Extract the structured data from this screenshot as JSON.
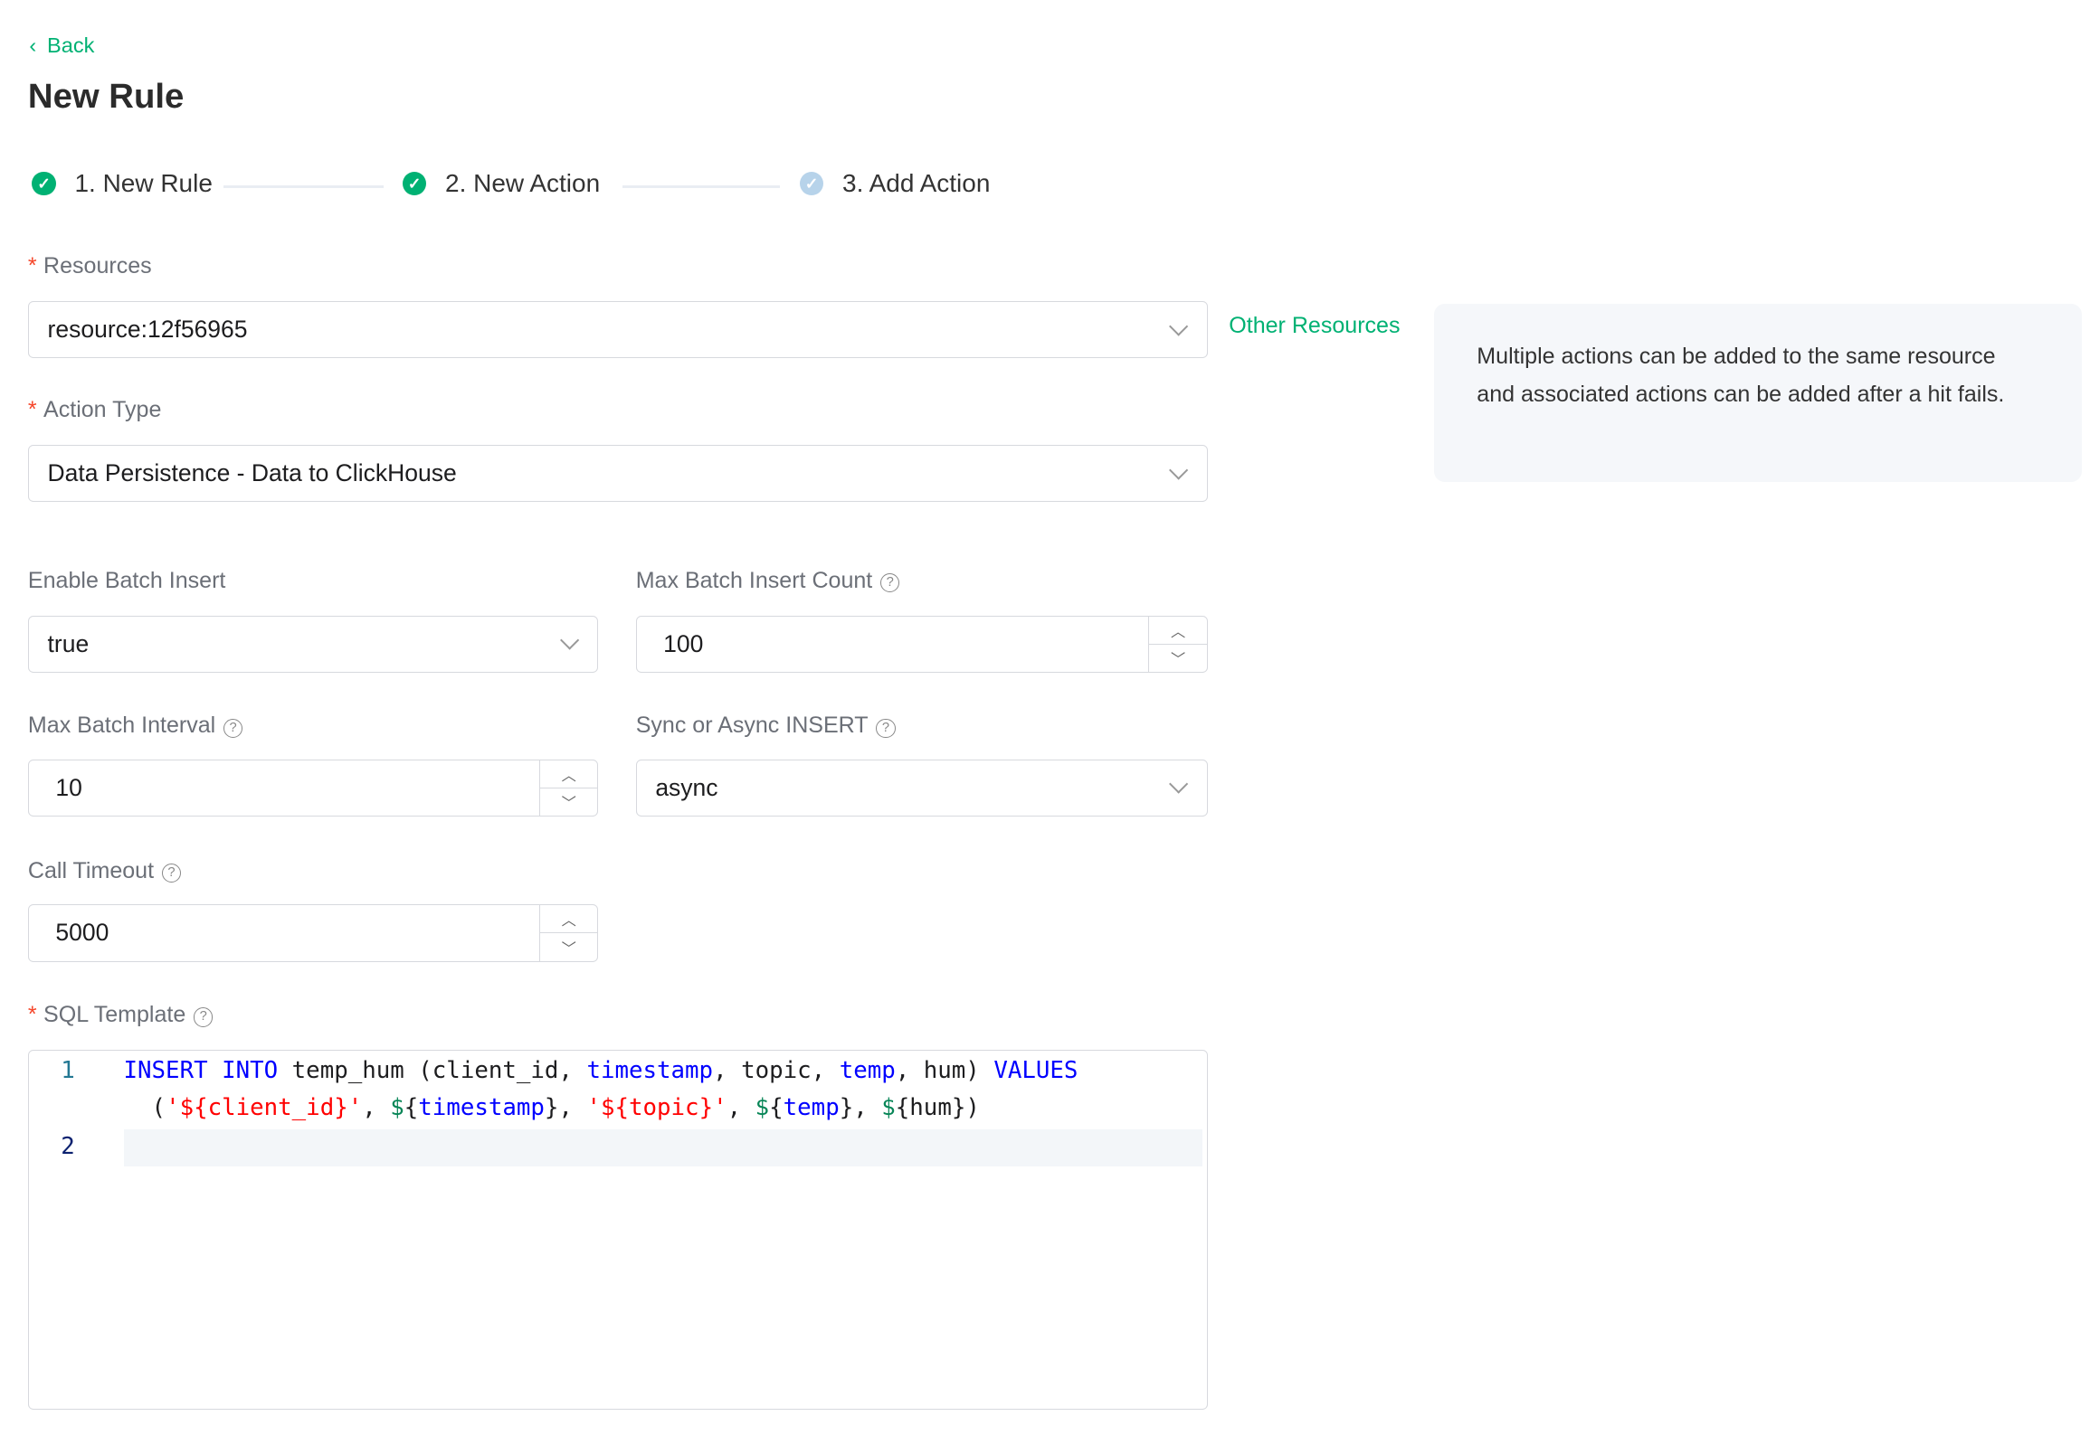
{
  "back": "Back",
  "title": "New Rule",
  "steps": [
    {
      "label": "1. New Rule",
      "status": "done"
    },
    {
      "label": "2. New Action",
      "status": "done"
    },
    {
      "label": "3. Add Action",
      "status": "current"
    }
  ],
  "colors": {
    "accent": "#00b173",
    "step_pending": "#b7d3ea",
    "required": "#f5462a"
  },
  "form": {
    "resources": {
      "label": "Resources",
      "value": "resource:12f56965",
      "link": "Other Resources"
    },
    "action_type": {
      "label": "Action Type",
      "value": "Data Persistence - Data to ClickHouse"
    },
    "enable_batch": {
      "label": "Enable Batch Insert",
      "value": "true"
    },
    "max_batch_count": {
      "label": "Max Batch Insert Count",
      "value": "100"
    },
    "max_batch_interval": {
      "label": "Max Batch Interval",
      "value": "10"
    },
    "sync_async": {
      "label": "Sync or Async INSERT",
      "value": "async"
    },
    "call_timeout": {
      "label": "Call Timeout",
      "value": "5000"
    },
    "sql_template": {
      "label": "SQL Template",
      "line_numbers": [
        "1",
        "2"
      ],
      "tokens1": [
        "INSERT INTO",
        " temp_hum (client_id, ",
        "timestamp",
        ", topic, ",
        "temp",
        ", hum) ",
        "VALUES"
      ],
      "tokens2": [
        "  (",
        "'${client_id}'",
        ", ",
        "$",
        "{",
        "timestamp",
        "}, ",
        "'${topic}'",
        ", ",
        "$",
        "{",
        "temp",
        "}, ",
        "$",
        "{hum})"
      ]
    }
  },
  "info": "Multiple actions can be added to the same resource and associated actions can be added after a hit fails."
}
